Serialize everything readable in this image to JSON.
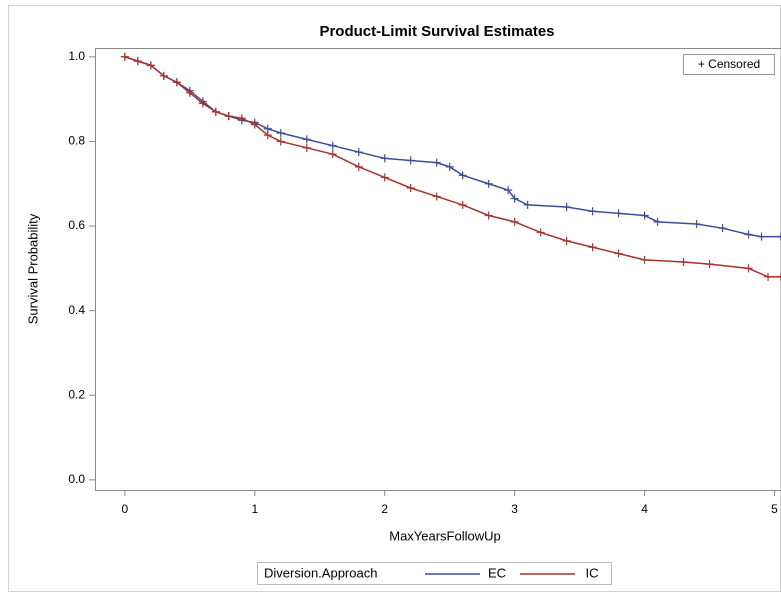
{
  "chart_data": {
    "type": "line",
    "title": "Product-Limit Survival Estimates",
    "x_label": "MaxYearsFollowUp",
    "y_label": "Survival Probability",
    "censored_label": "+ Censored",
    "legend_title": "Diversion.Approach",
    "xlim": [
      -0.23,
      5.05
    ],
    "ylim": [
      -0.024,
      1.021
    ],
    "xticks": [
      0,
      1,
      2,
      3,
      4,
      5
    ],
    "yticks": [
      {
        "value": 0,
        "label": "0.0"
      },
      0.2,
      0.4,
      0.6,
      0.8,
      {
        "value": 1,
        "label": "1.0"
      }
    ],
    "series": [
      {
        "name": "EC",
        "color": "#3a4f9b",
        "x": [
          0,
          0.1,
          0.2,
          0.3,
          0.4,
          0.5,
          0.6,
          0.7,
          0.8,
          0.9,
          1.0,
          1.1,
          1.2,
          1.4,
          1.6,
          1.8,
          2.0,
          2.2,
          2.4,
          2.5,
          2.6,
          2.8,
          2.95,
          3.0,
          3.1,
          3.4,
          3.6,
          3.8,
          4.0,
          4.1,
          4.4,
          4.6,
          4.8,
          4.9,
          5.05
        ],
        "values": [
          1.0,
          0.99,
          0.98,
          0.955,
          0.94,
          0.92,
          0.895,
          0.87,
          0.86,
          0.85,
          0.845,
          0.83,
          0.82,
          0.805,
          0.79,
          0.775,
          0.76,
          0.755,
          0.75,
          0.74,
          0.72,
          0.7,
          0.685,
          0.665,
          0.65,
          0.645,
          0.635,
          0.63,
          0.625,
          0.61,
          0.605,
          0.595,
          0.58,
          0.575,
          0.575
        ]
      },
      {
        "name": "IC",
        "color": "#a8322d",
        "x": [
          0,
          0.1,
          0.2,
          0.3,
          0.4,
          0.5,
          0.6,
          0.7,
          0.8,
          0.9,
          1.0,
          1.1,
          1.2,
          1.4,
          1.6,
          1.8,
          2.0,
          2.2,
          2.4,
          2.6,
          2.8,
          3.0,
          3.2,
          3.4,
          3.6,
          3.8,
          4.0,
          4.3,
          4.5,
          4.8,
          4.95,
          5.05
        ],
        "values": [
          1.0,
          0.99,
          0.98,
          0.955,
          0.94,
          0.915,
          0.89,
          0.87,
          0.86,
          0.855,
          0.84,
          0.815,
          0.8,
          0.785,
          0.77,
          0.74,
          0.715,
          0.69,
          0.67,
          0.65,
          0.625,
          0.61,
          0.585,
          0.565,
          0.55,
          0.535,
          0.52,
          0.515,
          0.51,
          0.5,
          0.48,
          0.48
        ]
      }
    ]
  }
}
